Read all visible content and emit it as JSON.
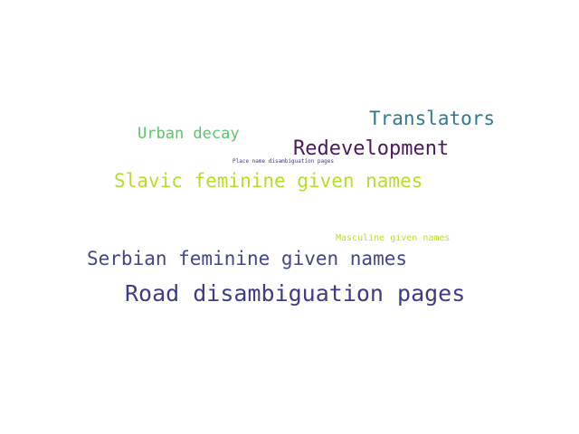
{
  "words": [
    {
      "text": "Translators",
      "color": "#2f7b8e"
    },
    {
      "text": "Urban decay",
      "color": "#5fc46c"
    },
    {
      "text": "Redevelopment",
      "color": "#4b1a5c"
    },
    {
      "text": "Place name disambiguation pages",
      "color": "#453781"
    },
    {
      "text": "Slavic feminine given names",
      "color": "#b5de2b"
    },
    {
      "text": "Masculine given names",
      "color": "#bddf26"
    },
    {
      "text": "Serbian feminine given names",
      "color": "#404688"
    },
    {
      "text": "Road disambiguation pages",
      "color": "#3f3c86"
    }
  ]
}
